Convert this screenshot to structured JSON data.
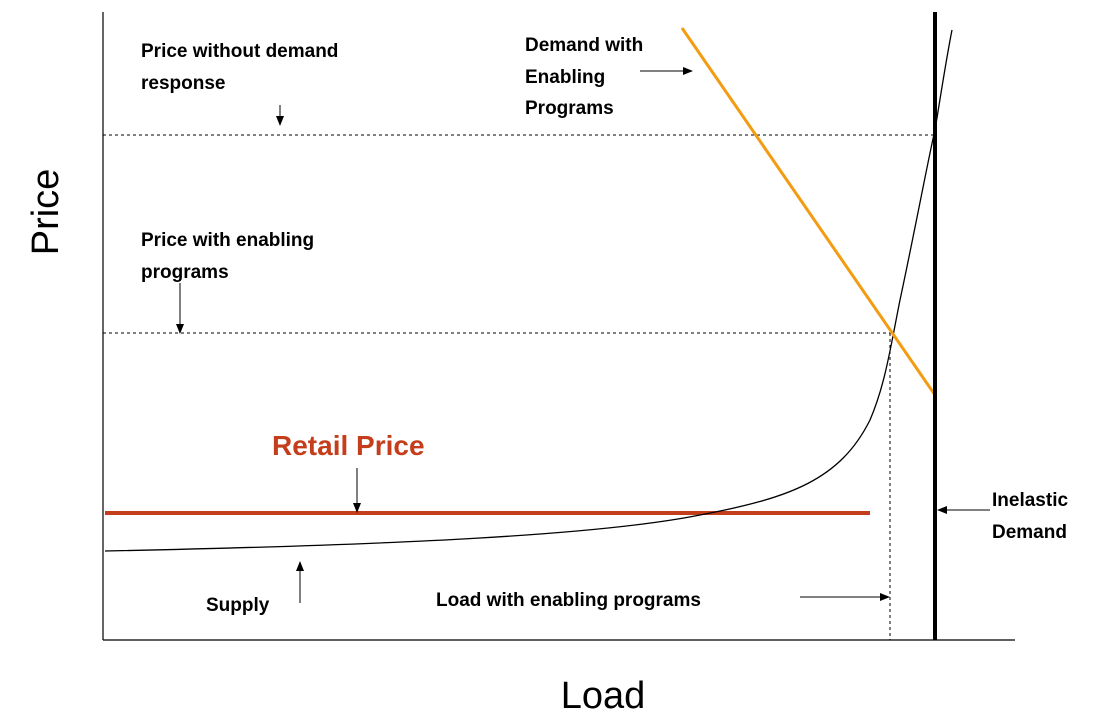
{
  "axes": {
    "y_label": "Price",
    "x_label": "Load"
  },
  "annotations": {
    "price_without_dr": [
      "Price without demand",
      "response"
    ],
    "demand_enabling": [
      "Demand with",
      "Enabling",
      "Programs"
    ],
    "price_with_enabling": [
      "Price with enabling",
      "programs"
    ],
    "retail_price": "Retail Price",
    "inelastic_demand": [
      "Inelastic",
      "Demand"
    ],
    "supply": "Supply",
    "load_with_enabling": "Load with enabling programs"
  }
}
